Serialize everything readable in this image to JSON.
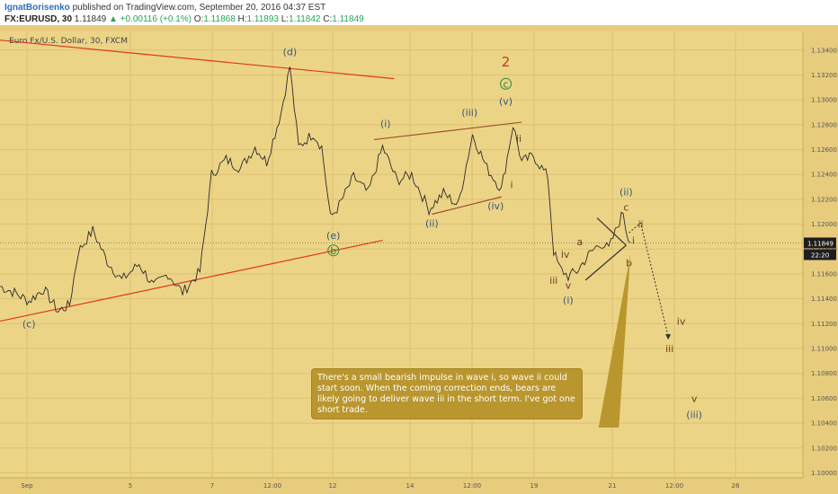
{
  "header": {
    "author": "IgnatBorisenko",
    "published_text": "published on TradingView.com, September 20, 2016 04:37 EST",
    "symbol": "FX:EURUSD, 30",
    "last": "1.11849",
    "arrow": "▲",
    "change": "+0.00116 (+0.1%)",
    "o_label": "O:",
    "o_value": "1.11868",
    "h_label": "H:",
    "h_value": "1.11893",
    "l_label": "L:",
    "l_value": "1.11842",
    "c_label": "C:",
    "c_value": "1.11849"
  },
  "chart_data": {
    "type": "line",
    "title": "Euro Fx/U.S. Dollar, 30, FXCM",
    "x_ticks": [
      "Sep",
      "5",
      "7",
      "12:00",
      "12",
      "14",
      "12:00",
      "19",
      "21",
      "12:00",
      "26"
    ],
    "y_ticks": [
      "1.13400",
      "1.13200",
      "1.13000",
      "1.12800",
      "1.12600",
      "1.12400",
      "1.12200",
      "1.12000",
      "1.11800",
      "1.11600",
      "1.11400",
      "1.11200",
      "1.11000",
      "1.10800",
      "1.10600",
      "1.10400",
      "1.10200",
      "1.10000"
    ],
    "ylim": [
      1.0996,
      1.1355
    ],
    "xlim": [
      0,
      27.7
    ],
    "last_price": "1.11849",
    "countdown": "22:20",
    "series": [
      {
        "values": [
          [
            0,
            1.115
          ],
          [
            0.5,
            1.1145
          ],
          [
            1.0,
            1.1138
          ],
          [
            1.5,
            1.1148
          ],
          [
            2.0,
            1.113
          ],
          [
            2.4,
            1.1135
          ],
          [
            2.7,
            1.1178
          ],
          [
            3.2,
            1.1195
          ],
          [
            3.7,
            1.117
          ],
          [
            4.2,
            1.1155
          ],
          [
            4.8,
            1.1168
          ],
          [
            5.3,
            1.115
          ],
          [
            5.8,
            1.116
          ],
          [
            6.3,
            1.1145
          ],
          [
            6.9,
            1.1162
          ],
          [
            7.1,
            1.12
          ],
          [
            7.3,
            1.124
          ],
          [
            7.8,
            1.1252
          ],
          [
            8.3,
            1.1245
          ],
          [
            8.8,
            1.1262
          ],
          [
            9.2,
            1.125
          ],
          [
            9.7,
            1.129
          ],
          [
            10.0,
            1.1327
          ],
          [
            10.3,
            1.1262
          ],
          [
            10.8,
            1.1273
          ],
          [
            11.1,
            1.1262
          ],
          [
            11.4,
            1.1205
          ],
          [
            11.7,
            1.1215
          ],
          [
            12.2,
            1.1238
          ],
          [
            12.7,
            1.1225
          ],
          [
            13.2,
            1.1262
          ],
          [
            13.7,
            1.1235
          ],
          [
            14.2,
            1.124
          ],
          [
            14.8,
            1.1212
          ],
          [
            15.3,
            1.1225
          ],
          [
            15.8,
            1.1215
          ],
          [
            16.3,
            1.1272
          ],
          [
            16.8,
            1.1245
          ],
          [
            17.3,
            1.1228
          ],
          [
            17.7,
            1.128
          ],
          [
            18.0,
            1.125
          ],
          [
            18.4,
            1.1255
          ],
          [
            18.9,
            1.1238
          ],
          [
            19.1,
            1.1178
          ],
          [
            19.3,
            1.1165
          ],
          [
            19.6,
            1.1158
          ],
          [
            19.9,
            1.1162
          ],
          [
            20.3,
            1.1175
          ],
          [
            20.7,
            1.1185
          ],
          [
            21.0,
            1.118
          ],
          [
            21.3,
            1.1198
          ],
          [
            21.5,
            1.121
          ],
          [
            21.6,
            1.1196
          ],
          [
            21.75,
            1.1185
          ]
        ]
      }
    ],
    "lines": [
      {
        "name": "upper-triangle-line",
        "color": "#e0381c",
        "points": [
          [
            0,
            1.1348
          ],
          [
            13.6,
            1.1317
          ]
        ]
      },
      {
        "name": "lower-triangle-line",
        "color": "#e0381c",
        "points": [
          [
            0,
            1.1122
          ],
          [
            13.2,
            1.1187
          ]
        ]
      },
      {
        "name": "upper-channel-line",
        "color": "#a0522d",
        "points": [
          [
            12.9,
            1.1268
          ],
          [
            18.0,
            1.1282
          ]
        ]
      },
      {
        "name": "lower-channel-line",
        "color": "#a0522d",
        "points": [
          [
            14.9,
            1.1208
          ],
          [
            17.3,
            1.1222
          ]
        ]
      },
      {
        "name": "subwave-upper-line",
        "color": "#333333",
        "points": [
          [
            20.6,
            1.1205
          ],
          [
            21.6,
            1.1183
          ]
        ]
      },
      {
        "name": "subwave-lower-line",
        "color": "#333333",
        "points": [
          [
            20.2,
            1.1155
          ],
          [
            21.6,
            1.1183
          ]
        ]
      },
      {
        "name": "projection-line",
        "color": "#333333",
        "points": [
          [
            21.7,
            1.1193
          ],
          [
            22.1,
            1.1201
          ],
          [
            23.05,
            1.111
          ]
        ]
      }
    ],
    "annotations": [
      {
        "text": "(c)",
        "x": 1.0,
        "y": 1.1117,
        "color": "#38577a"
      },
      {
        "text": "(d)",
        "x": 10.0,
        "y": 1.1336,
        "color": "#38577a"
      },
      {
        "text": "(e)",
        "x": 11.5,
        "y": 1.1188,
        "color": "#38577a"
      },
      {
        "text": "b",
        "x": 11.5,
        "y": 1.1176,
        "color": "#2a8a3a"
      },
      {
        "text": "(i)",
        "x": 13.3,
        "y": 1.1278,
        "color": "#38577a"
      },
      {
        "text": "(ii)",
        "x": 14.9,
        "y": 1.1198,
        "color": "#38577a"
      },
      {
        "text": "(iii)",
        "x": 16.2,
        "y": 1.1287,
        "color": "#38577a"
      },
      {
        "text": "(iv)",
        "x": 17.1,
        "y": 1.1212,
        "color": "#38577a"
      },
      {
        "text": "(v)",
        "x": 17.45,
        "y": 1.1296,
        "color": "#38577a"
      },
      {
        "text": "c",
        "x": 17.45,
        "y": 1.131,
        "color": "#2a8a3a"
      },
      {
        "text": "2",
        "x": 17.45,
        "y": 1.1327,
        "color": "#c0392b"
      },
      {
        "text": "ii",
        "x": 17.9,
        "y": 1.1266,
        "color": "#6b3e1f"
      },
      {
        "text": "i",
        "x": 17.65,
        "y": 1.1229,
        "color": "#6b3e1f"
      },
      {
        "text": "iv",
        "x": 19.5,
        "y": 1.1173,
        "color": "#6b3e1f"
      },
      {
        "text": "iii",
        "x": 19.1,
        "y": 1.1152,
        "color": "#6b3e1f"
      },
      {
        "text": "v",
        "x": 19.6,
        "y": 1.1148,
        "color": "#6b3e1f"
      },
      {
        "text": "(i)",
        "x": 19.6,
        "y": 1.1136,
        "color": "#38577a"
      },
      {
        "text": "a",
        "x": 20.0,
        "y": 1.1183,
        "color": "#6b3e1f"
      },
      {
        "text": "(ii)",
        "x": 21.6,
        "y": 1.1223,
        "color": "#38577a"
      },
      {
        "text": "c",
        "x": 21.6,
        "y": 1.1211,
        "color": "#6b3e1f"
      },
      {
        "text": "ii",
        "x": 22.1,
        "y": 1.1197,
        "color": "#6b3e1f"
      },
      {
        "text": "i",
        "x": 21.85,
        "y": 1.1184,
        "color": "#6b3e1f"
      },
      {
        "text": "b",
        "x": 21.7,
        "y": 1.1166,
        "color": "#6b3e1f"
      },
      {
        "text": "iv",
        "x": 23.5,
        "y": 1.1119,
        "color": "#6b3e1f"
      },
      {
        "text": "iii",
        "x": 23.1,
        "y": 1.1097,
        "color": "#6b3e1f"
      },
      {
        "text": "v",
        "x": 23.95,
        "y": 1.1057,
        "color": "#6b3e1f"
      },
      {
        "text": "(iii)",
        "x": 23.95,
        "y": 1.1044,
        "color": "#38577a"
      }
    ],
    "note_text": "There's a small bearish impulse in wave i, so wave ii could start soon. When the coming correction ends, bears are likely going to deliver wave iii in the short term. I've got one short trade."
  }
}
